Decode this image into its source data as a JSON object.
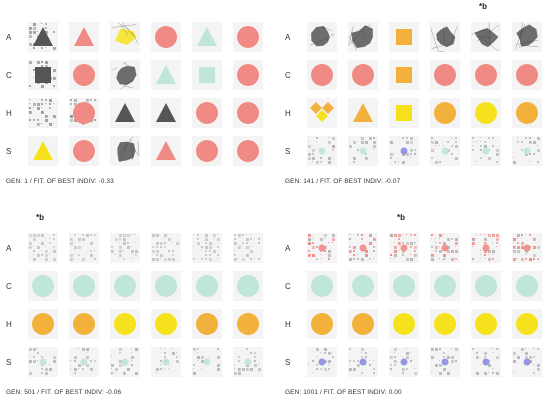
{
  "row_labels": [
    "A",
    "C",
    "H",
    "S"
  ],
  "asterisk": "*b",
  "colors": {
    "gray": "#555555",
    "salmon": "#f08a84",
    "mint": "#bfe6d8",
    "yellow": "#f5e21c",
    "orange": "#f2b13a",
    "blue": "#8c8ce6",
    "noise": "#9a9a9a"
  },
  "panels": [
    {
      "caption": "GEN: 1 / FIT. OF BEST INDIV: -0.33",
      "marker_column": null,
      "rows": [
        [
          "noise-triangle-gray",
          "triangle-salmon",
          "blob-yellow",
          "circle-salmon",
          "triangle-mint",
          "circle-salmon"
        ],
        [
          "noise-square-gray",
          "circle-salmon",
          "blob-gray",
          "triangle-mint",
          "square-mint",
          "circle-salmon"
        ],
        [
          "noise-gray",
          "noise-circle-salmon",
          "triangle-gray",
          "triangle-gray",
          "circle-salmon",
          "circle-salmon"
        ],
        [
          "triangle-yellow",
          "circle-salmon",
          "blob-gray",
          "triangle-salmon",
          "circle-salmon",
          "circle-salmon"
        ]
      ]
    },
    {
      "caption": "GEN: 141 / FIT. OF BEST INDIV: -0.07",
      "marker_column": 4,
      "rows": [
        [
          "blob-gray",
          "blob-gray",
          "square-orange",
          "blob-gray",
          "blob-gray",
          "blob-gray"
        ],
        [
          "circle-salmon",
          "circle-salmon",
          "square-orange",
          "circle-salmon",
          "circle-salmon",
          "circle-salmon"
        ],
        [
          "diamonds-orange",
          "triangle-orange",
          "square-yellow",
          "circle-orange",
          "circle-yellow",
          "circle-orange"
        ],
        [
          "noise-mint",
          "noise-mint",
          "noise-blue",
          "noise-mint",
          "noise-mint",
          "noise-mint"
        ]
      ]
    },
    {
      "caption": "GEN: 501 / FIT. OF BEST INDIV: -0.06",
      "marker_column": 0,
      "rows": [
        [
          "noise-light",
          "noise-light",
          "noise-light",
          "noise-light",
          "noise-light",
          "noise-light"
        ],
        [
          "circle-mint",
          "circle-mint",
          "circle-mint",
          "circle-mint",
          "circle-mint",
          "circle-mint"
        ],
        [
          "circle-orange",
          "circle-orange",
          "circle-yellow",
          "circle-yellow",
          "circle-orange",
          "circle-orange"
        ],
        [
          "noise-mint",
          "noise-mint",
          "noise-mint",
          "noise-mint",
          "noise-mint",
          "noise-mint"
        ]
      ]
    },
    {
      "caption": "GEN: 1001 / FIT. OF BEST INDIV: 0.00",
      "marker_column": 2,
      "rows": [
        [
          "noise-salmon",
          "noise-salmon",
          "noise-salmon",
          "noise-salmon",
          "noise-salmon",
          "noise-salmon"
        ],
        [
          "circle-mint",
          "circle-mint",
          "circle-mint",
          "circle-mint",
          "circle-mint",
          "circle-mint"
        ],
        [
          "circle-orange",
          "circle-orange",
          "circle-yellow",
          "circle-yellow",
          "circle-yellow",
          "circle-yellow"
        ],
        [
          "noise-blue",
          "noise-blue",
          "noise-blue",
          "noise-blue",
          "noise-blue",
          "noise-blue"
        ]
      ]
    }
  ]
}
